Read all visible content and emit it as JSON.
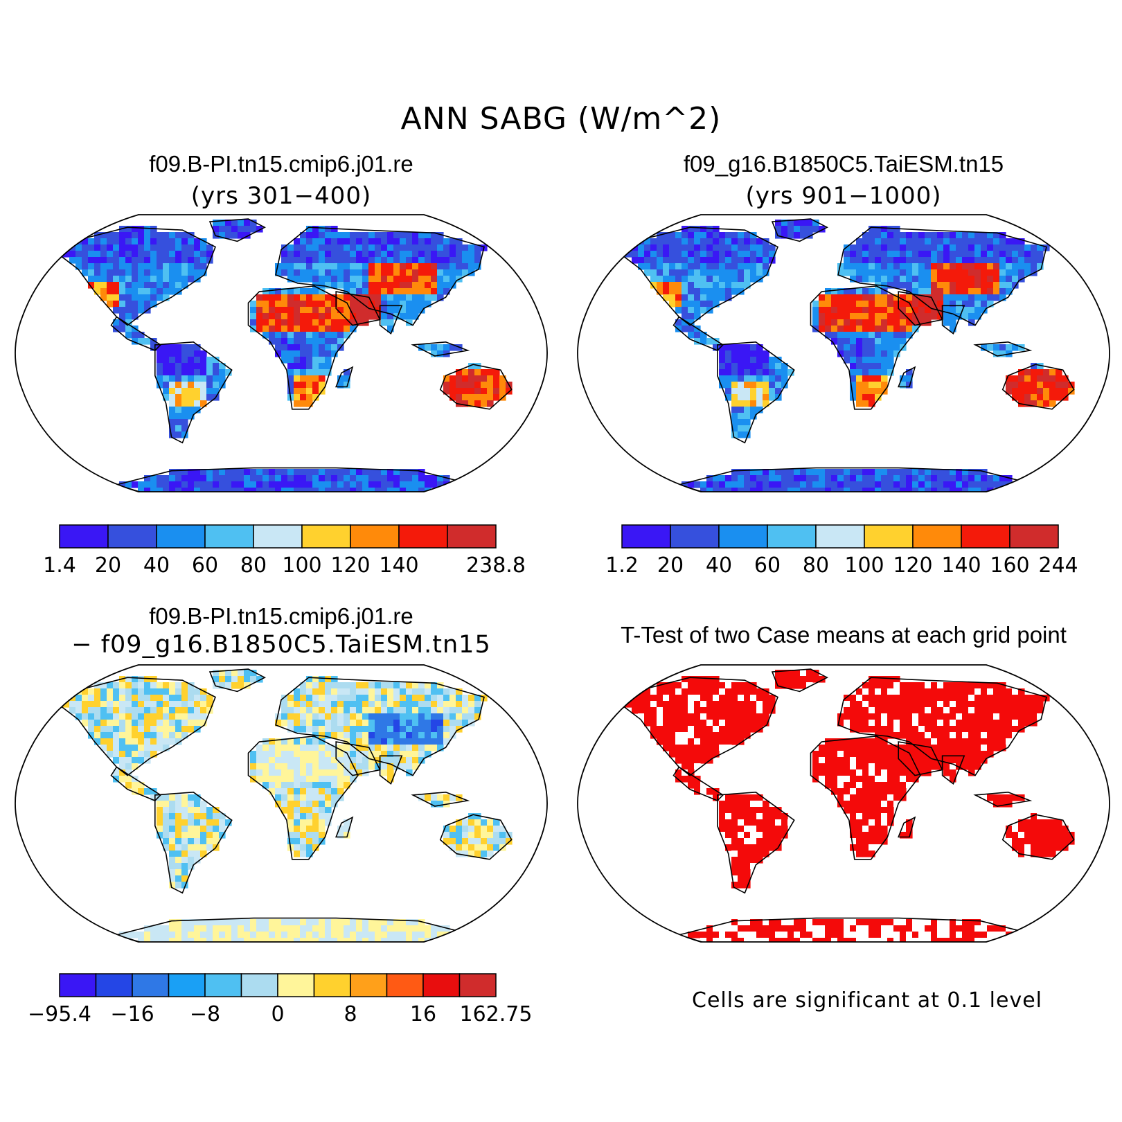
{
  "main_title": "ANN SABG (W/m^2)",
  "panels": {
    "top_left": {
      "title": "f09.B-PI.tn15.cmip6.j01.re",
      "subtitle": "(yrs 301−400)",
      "colorbar": {
        "labels": [
          "1.4",
          "20",
          "40",
          "60",
          "80",
          "100",
          "120",
          "140",
          "238.8"
        ],
        "colors": [
          "#3a17f5",
          "#3650dd",
          "#1a8ff0",
          "#4fc0f2",
          "#c9e7f5",
          "#ffd12e",
          "#ff8a0a",
          "#f41a0a",
          "#d02c2c"
        ]
      }
    },
    "top_right": {
      "title": "f09_g16.B1850C5.TaiESM.tn15",
      "subtitle": "(yrs 901−1000)",
      "colorbar": {
        "labels": [
          "1.2",
          "20",
          "40",
          "60",
          "80",
          "100",
          "120",
          "140",
          "160",
          "244"
        ],
        "colors": [
          "#3a17f5",
          "#3650dd",
          "#1a8ff0",
          "#4fc0f2",
          "#c9e7f5",
          "#ffd12e",
          "#ff8a0a",
          "#f41a0a",
          "#d02c2c"
        ]
      }
    },
    "bottom_left": {
      "title": "f09.B-PI.tn15.cmip6.j01.re",
      "subtitle": "− f09_g16.B1850C5.TaiESM.tn15",
      "colorbar": {
        "labels": [
          "−95.4",
          "−16",
          "−8",
          "0",
          "8",
          "16",
          "162.75"
        ],
        "colors": [
          "#3a17f5",
          "#2446e6",
          "#2f78e6",
          "#1aa0f5",
          "#4fc0f2",
          "#acdcf0",
          "#fff59a",
          "#ffd12e",
          "#ffa01a",
          "#ff5a14",
          "#e80e0e",
          "#d02c2c"
        ]
      }
    },
    "bottom_right": {
      "title": "T-Test of two Case means at each grid point",
      "note": "Cells are significant at 0.1 level"
    }
  },
  "map_colors": {
    "water": "#ffffff",
    "coast": "#000000",
    "land_low": "#3a5ae0",
    "land_mid": "#4fc0f2",
    "land_hot": "#f42a12",
    "land_warm": "#ffd12e",
    "diff_neutral": "#c9e7f5",
    "diff_pos": "#fff59a",
    "diff_neg": "#3a5ae0",
    "ttest_sig": "#f40a0a"
  }
}
